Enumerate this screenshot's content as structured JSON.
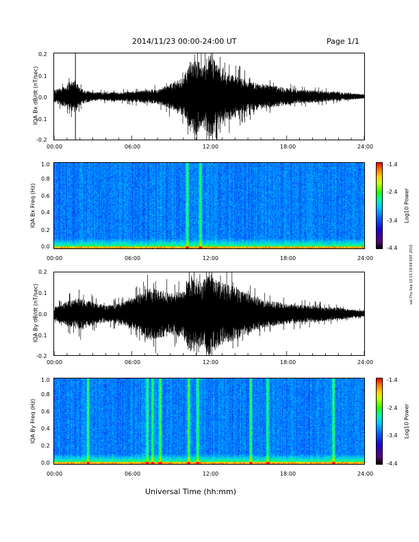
{
  "header": {
    "title": "2014/11/23  00:00-24:00 UT",
    "page": "Page 1/1"
  },
  "footer": {
    "xlabel": "Universal Time (hh:mm)",
    "timestamp": "sat Thu Sep 10 15:19:59 EDT 2015"
  },
  "x_ticks": [
    "00:00",
    "06:00",
    "12:00",
    "18:00",
    "24:00"
  ],
  "colorbar": {
    "label": "Log10 Power",
    "ticks": [
      "-1.4",
      "-2.4",
      "-3.4",
      "-4.4"
    ]
  },
  "chart_data": [
    {
      "type": "line",
      "ylabel": "IQA Bx dB/dt (nT/sec)",
      "xlim": [
        0,
        24
      ],
      "ylim": [
        -0.2,
        0.2
      ],
      "y_ticks": [
        "0.2",
        "0.1",
        "0.0",
        "-0.1",
        "-0.2"
      ],
      "envelope": {
        "x": [
          0,
          1,
          1.6,
          2,
          3,
          4,
          5,
          6,
          7,
          8,
          9,
          10,
          10.5,
          11,
          11.5,
          12,
          13,
          14,
          15,
          16,
          17,
          18,
          19,
          20,
          21,
          22,
          23,
          24
        ],
        "amplitude": [
          0.03,
          0.05,
          0.08,
          0.04,
          0.02,
          0.02,
          0.02,
          0.025,
          0.03,
          0.035,
          0.06,
          0.09,
          0.16,
          0.18,
          0.14,
          0.2,
          0.12,
          0.1,
          0.07,
          0.06,
          0.05,
          0.04,
          0.03,
          0.03,
          0.025,
          0.02,
          0.015,
          0.01
        ]
      },
      "spikes": [
        {
          "x": 1.65,
          "y_top": 0.2,
          "y_bottom": -0.2
        },
        {
          "x": 12.6,
          "y_top": 0.12,
          "y_bottom": -0.2
        }
      ]
    },
    {
      "type": "heatmap",
      "ylabel": "IQA Bx Freq (Hz)",
      "xlim": [
        0,
        24
      ],
      "ylim": [
        0.0,
        1.0
      ],
      "y_ticks": [
        "1.0",
        "0.8",
        "0.6",
        "0.4",
        "0.2",
        "0.0"
      ],
      "color_scale": [
        -4.4,
        -1.4
      ],
      "bright_bands_hours": [
        10.3,
        11.3
      ]
    },
    {
      "type": "line",
      "ylabel": "IQA By dB/dt (nT/sec)",
      "xlim": [
        0,
        24
      ],
      "ylim": [
        -0.2,
        0.2
      ],
      "y_ticks": [
        "0.2",
        "0.1",
        "0.0",
        "-0.1",
        "-0.2"
      ],
      "envelope": {
        "x": [
          0,
          1,
          2,
          3,
          4,
          5,
          6,
          7,
          7.5,
          8,
          9,
          10,
          10.5,
          11,
          11.5,
          12,
          13,
          14,
          15,
          16,
          17,
          18,
          19,
          20,
          21,
          22,
          23,
          24
        ],
        "amplitude": [
          0.03,
          0.06,
          0.08,
          0.06,
          0.04,
          0.05,
          0.07,
          0.12,
          0.13,
          0.12,
          0.1,
          0.12,
          0.2,
          0.15,
          0.16,
          0.2,
          0.15,
          0.13,
          0.1,
          0.07,
          0.06,
          0.05,
          0.045,
          0.04,
          0.035,
          0.03,
          0.02,
          0.015
        ]
      },
      "spikes": []
    },
    {
      "type": "heatmap",
      "ylabel": "IQA By Freq (Hz)",
      "xlim": [
        0,
        24
      ],
      "ylim": [
        0.0,
        1.0
      ],
      "y_ticks": [
        "1.0",
        "0.8",
        "0.6",
        "0.4",
        "0.2",
        "0.0"
      ],
      "color_scale": [
        -4.4,
        -1.4
      ],
      "bright_bands_hours": [
        2.6,
        7.2,
        7.6,
        8.2,
        10.4,
        11.1,
        15.2,
        16.5,
        21.6
      ]
    }
  ]
}
